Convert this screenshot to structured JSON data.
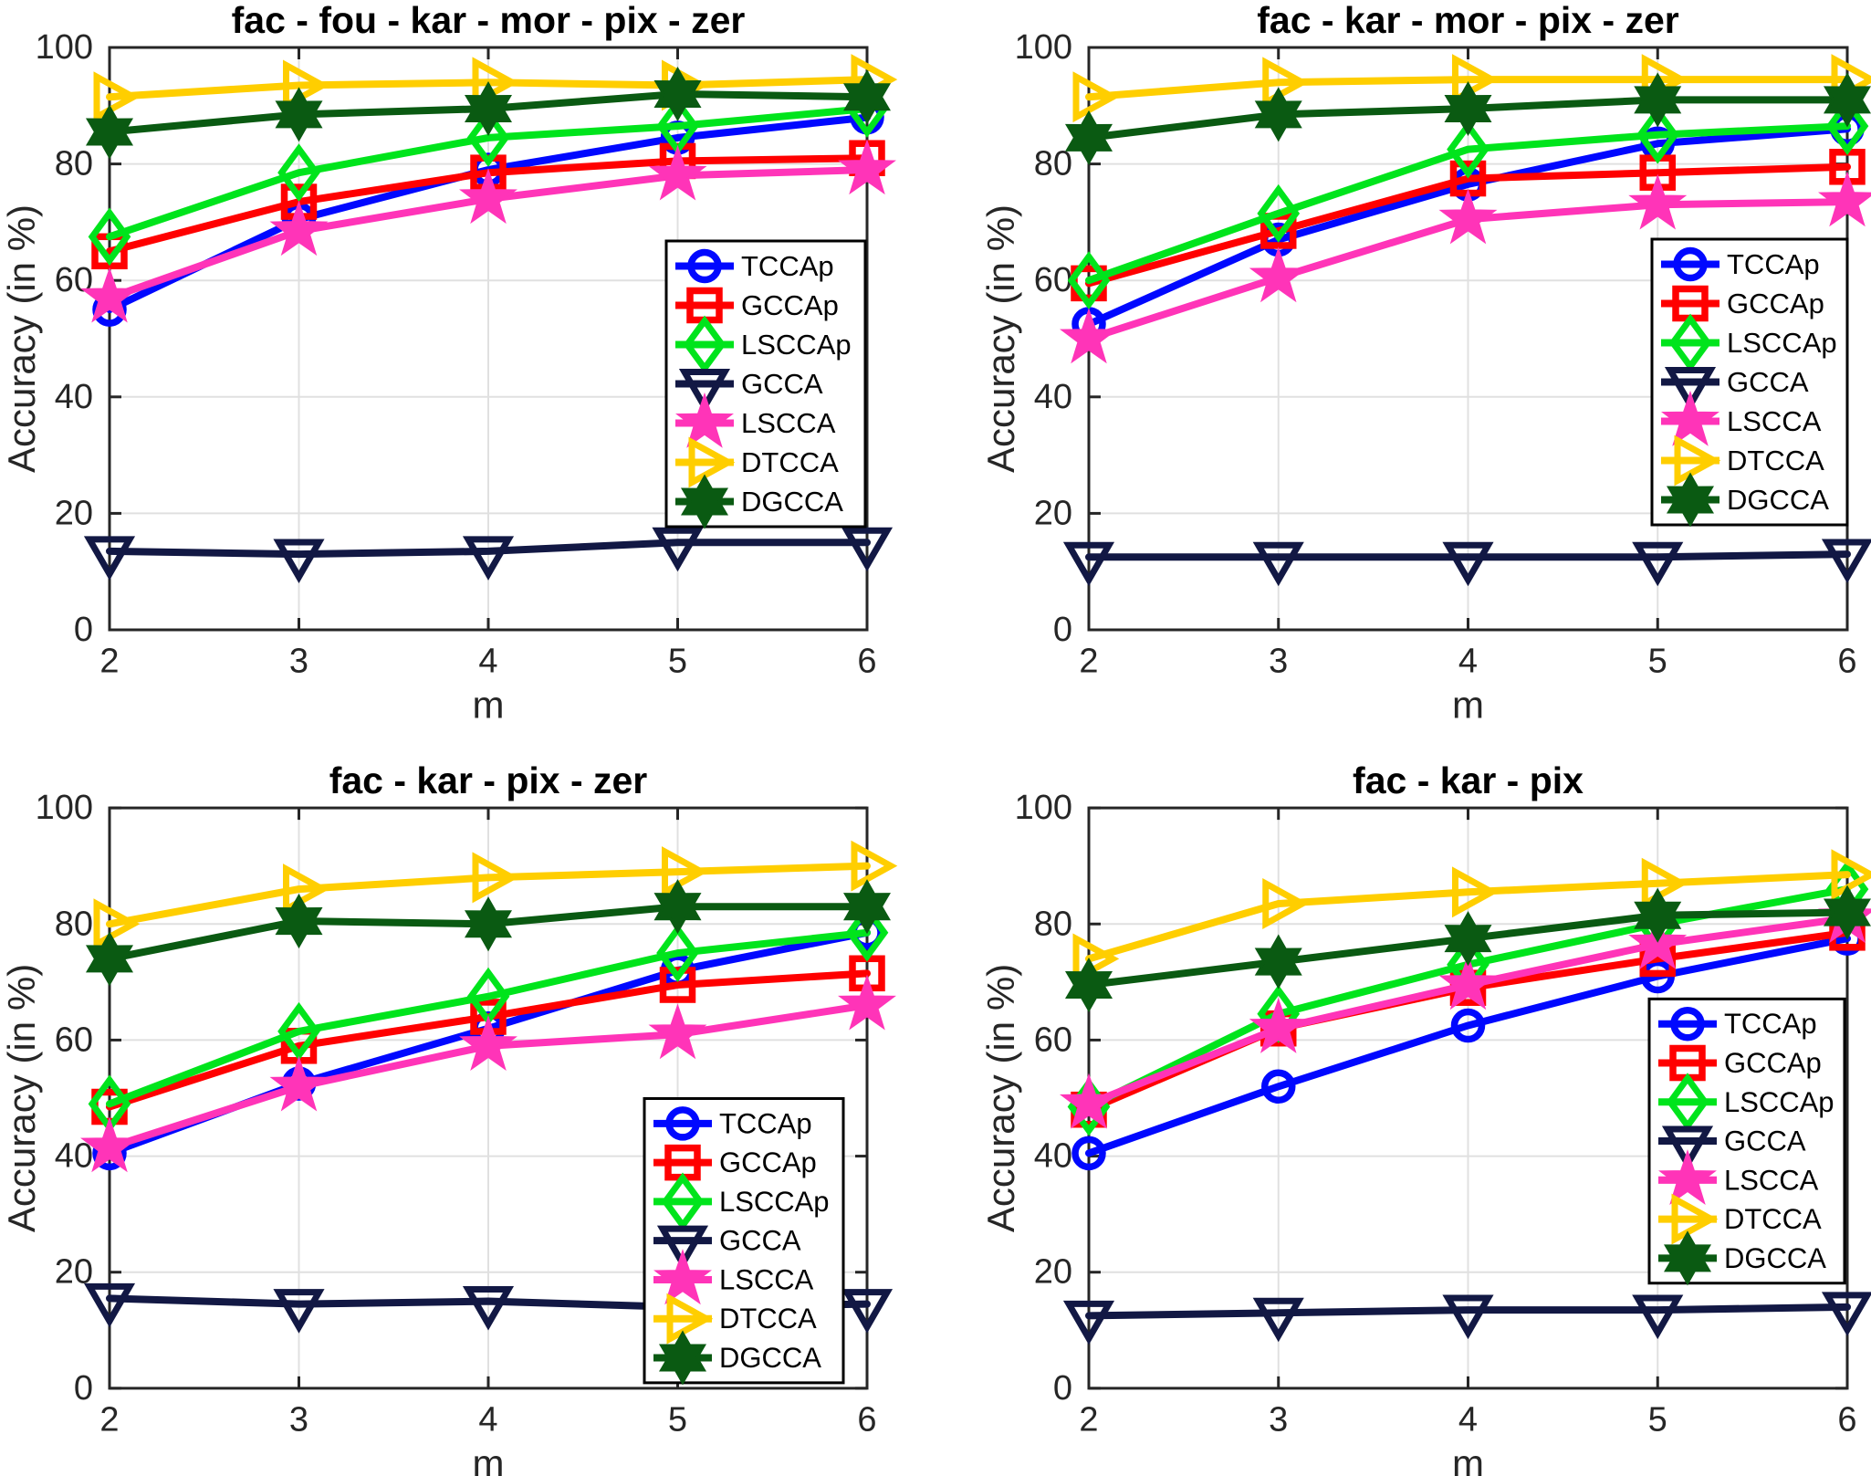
{
  "figure": {
    "background": "#ffffff",
    "rows": 2,
    "cols": 2
  },
  "styles": {
    "axis_color": "#262626",
    "grid_color": "#e0e0e0",
    "title_color": "#000000",
    "legend_border_color": "#000000",
    "series": [
      {
        "name": "TCCAp",
        "color": "#0008ff",
        "marker": "circle"
      },
      {
        "name": "GCCAp",
        "color": "#ff0000",
        "marker": "square"
      },
      {
        "name": "LSCCAp",
        "color": "#00e41c",
        "marker": "diamond"
      },
      {
        "name": "GCCA",
        "color": "#121844",
        "marker": "triangle-down"
      },
      {
        "name": "LSCCA",
        "color": "#ff34b8",
        "marker": "star-5"
      },
      {
        "name": "DTCCA",
        "color": "#ffce00",
        "marker": "triangle-right"
      },
      {
        "name": "DGCCA",
        "color": "#0a5a12",
        "marker": "star-6"
      }
    ]
  },
  "chart_data": [
    {
      "type": "line",
      "title": "fac - fou - kar - mor - pix - zer",
      "xlabel": "m",
      "ylabel": "Accuracy (in %)",
      "x": [
        2,
        3,
        4,
        5,
        6
      ],
      "xlim": [
        2,
        6
      ],
      "ylim": [
        0,
        100
      ],
      "xticks": [
        2,
        3,
        4,
        5,
        6
      ],
      "yticks": [
        0,
        20,
        40,
        60,
        80,
        100
      ],
      "grid": true,
      "legend_position": "inside-right-middle",
      "series": [
        {
          "name": "TCCAp",
          "values": [
            55,
            70.5,
            79,
            84.5,
            88
          ]
        },
        {
          "name": "GCCAp",
          "values": [
            65,
            73.5,
            78.5,
            80.5,
            81
          ]
        },
        {
          "name": "LSCCAp",
          "values": [
            67.5,
            78.5,
            84.5,
            86.5,
            89.5
          ]
        },
        {
          "name": "GCCA",
          "values": [
            13.5,
            13,
            13.5,
            15,
            15
          ]
        },
        {
          "name": "LSCCA",
          "values": [
            57,
            68.5,
            74,
            78,
            79
          ]
        },
        {
          "name": "DTCCA",
          "values": [
            91.5,
            93.5,
            94,
            93.5,
            94.5
          ]
        },
        {
          "name": "DGCCA",
          "values": [
            85.5,
            88.5,
            89.5,
            92,
            91.5
          ]
        }
      ]
    },
    {
      "type": "line",
      "title": "fac - kar - mor - pix - zer",
      "xlabel": "m",
      "ylabel": "Accuracy (in %)",
      "x": [
        2,
        3,
        4,
        5,
        6
      ],
      "xlim": [
        2,
        6
      ],
      "ylim": [
        0,
        100
      ],
      "xticks": [
        2,
        3,
        4,
        5,
        6
      ],
      "yticks": [
        0,
        20,
        40,
        60,
        80,
        100
      ],
      "grid": true,
      "legend_position": "inside-right-middle",
      "series": [
        {
          "name": "TCCAp",
          "values": [
            52.5,
            67,
            76.5,
            83.5,
            86
          ]
        },
        {
          "name": "GCCAp",
          "values": [
            59.5,
            68.5,
            77.5,
            78.5,
            79.5
          ]
        },
        {
          "name": "LSCCAp",
          "values": [
            60,
            71.5,
            82.5,
            85,
            86.5
          ]
        },
        {
          "name": "GCCA",
          "values": [
            12.5,
            12.5,
            12.5,
            12.5,
            13
          ]
        },
        {
          "name": "LSCCA",
          "values": [
            50,
            60.5,
            70.5,
            73,
            73.5
          ]
        },
        {
          "name": "DTCCA",
          "values": [
            91.5,
            94,
            94.5,
            94.5,
            94.5
          ]
        },
        {
          "name": "DGCCA",
          "values": [
            84.5,
            88.5,
            89.5,
            91,
            91
          ]
        }
      ]
    },
    {
      "type": "line",
      "title": "fac - kar - pix - zer",
      "xlabel": "m",
      "ylabel": "Accuracy (in %)",
      "x": [
        2,
        3,
        4,
        5,
        6
      ],
      "xlim": [
        2,
        6
      ],
      "ylim": [
        0,
        100
      ],
      "xticks": [
        2,
        3,
        4,
        5,
        6
      ],
      "yticks": [
        0,
        20,
        40,
        60,
        80,
        100
      ],
      "grid": true,
      "legend_position": "inside-right-bottom",
      "series": [
        {
          "name": "TCCAp",
          "values": [
            40.5,
            52.5,
            62,
            72,
            78.5
          ]
        },
        {
          "name": "GCCAp",
          "values": [
            48.5,
            59,
            64,
            69.5,
            71.5
          ]
        },
        {
          "name": "LSCCAp",
          "values": [
            49,
            61.5,
            67.5,
            75,
            78.5
          ]
        },
        {
          "name": "GCCA",
          "values": [
            15.5,
            14.5,
            15,
            14,
            14.5
          ]
        },
        {
          "name": "LSCCA",
          "values": [
            41.5,
            52,
            59,
            61,
            66
          ]
        },
        {
          "name": "DTCCA",
          "values": [
            80,
            86,
            88,
            89,
            90
          ]
        },
        {
          "name": "DGCCA",
          "values": [
            74,
            80.5,
            80,
            83,
            83
          ]
        }
      ]
    },
    {
      "type": "line",
      "title": "fac - kar - pix",
      "xlabel": "m",
      "ylabel": "Accuracy (in %)",
      "x": [
        2,
        3,
        4,
        5,
        6
      ],
      "xlim": [
        2,
        6
      ],
      "ylim": [
        0,
        100
      ],
      "xticks": [
        2,
        3,
        4,
        5,
        6
      ],
      "yticks": [
        0,
        20,
        40,
        60,
        80,
        100
      ],
      "grid": true,
      "legend_position": "inside-right-middle",
      "series": [
        {
          "name": "TCCAp",
          "values": [
            40.5,
            52,
            62.5,
            71,
            77.5
          ]
        },
        {
          "name": "GCCAp",
          "values": [
            48,
            62,
            69,
            74,
            78.5
          ]
        },
        {
          "name": "LSCCAp",
          "values": [
            48.5,
            64.5,
            73,
            80,
            86
          ]
        },
        {
          "name": "GCCA",
          "values": [
            12.5,
            13,
            13.5,
            13.5,
            14
          ]
        },
        {
          "name": "LSCCA",
          "values": [
            49,
            62,
            69.5,
            76.5,
            81
          ]
        },
        {
          "name": "DTCCA",
          "values": [
            74,
            83.5,
            85.5,
            87,
            88.5
          ]
        },
        {
          "name": "DGCCA",
          "values": [
            69.5,
            73.5,
            77.5,
            81.5,
            82
          ]
        }
      ]
    }
  ]
}
